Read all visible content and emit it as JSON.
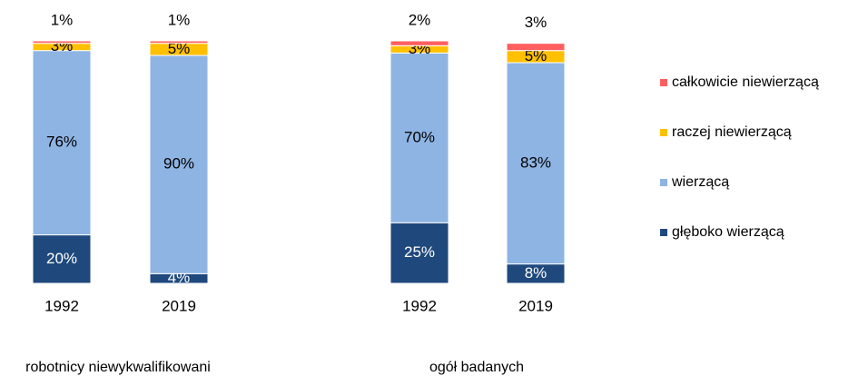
{
  "chart_data": {
    "type": "stacked-bar",
    "categories": [
      "1992",
      "2019",
      "1992",
      "2019"
    ],
    "group_labels": [
      "robotnicy niewykwalifikowani",
      "ogół badanych"
    ],
    "series": [
      {
        "name": "głęboko wierzącą",
        "color": "#1f497d",
        "values": [
          20,
          4,
          25,
          8
        ],
        "value_labels": [
          "20%",
          "4%",
          "25%",
          "8%"
        ]
      },
      {
        "name": "wierzącą",
        "color": "#8eb4e3",
        "values": [
          76,
          90,
          70,
          83
        ],
        "value_labels": [
          "76%",
          "90%",
          "70%",
          "83%"
        ]
      },
      {
        "name": "raczej niewierzącą",
        "color": "#ffc000",
        "values": [
          3,
          5,
          3,
          5
        ],
        "value_labels": [
          "3%",
          "5%",
          "3%",
          "5%"
        ]
      },
      {
        "name": "całkowicie niewierzącą",
        "color": "#ff5f5f",
        "values": [
          1,
          1,
          2,
          3
        ],
        "value_labels": [
          "1%",
          "1%",
          "2%",
          "3%"
        ]
      }
    ],
    "legend": "right"
  }
}
